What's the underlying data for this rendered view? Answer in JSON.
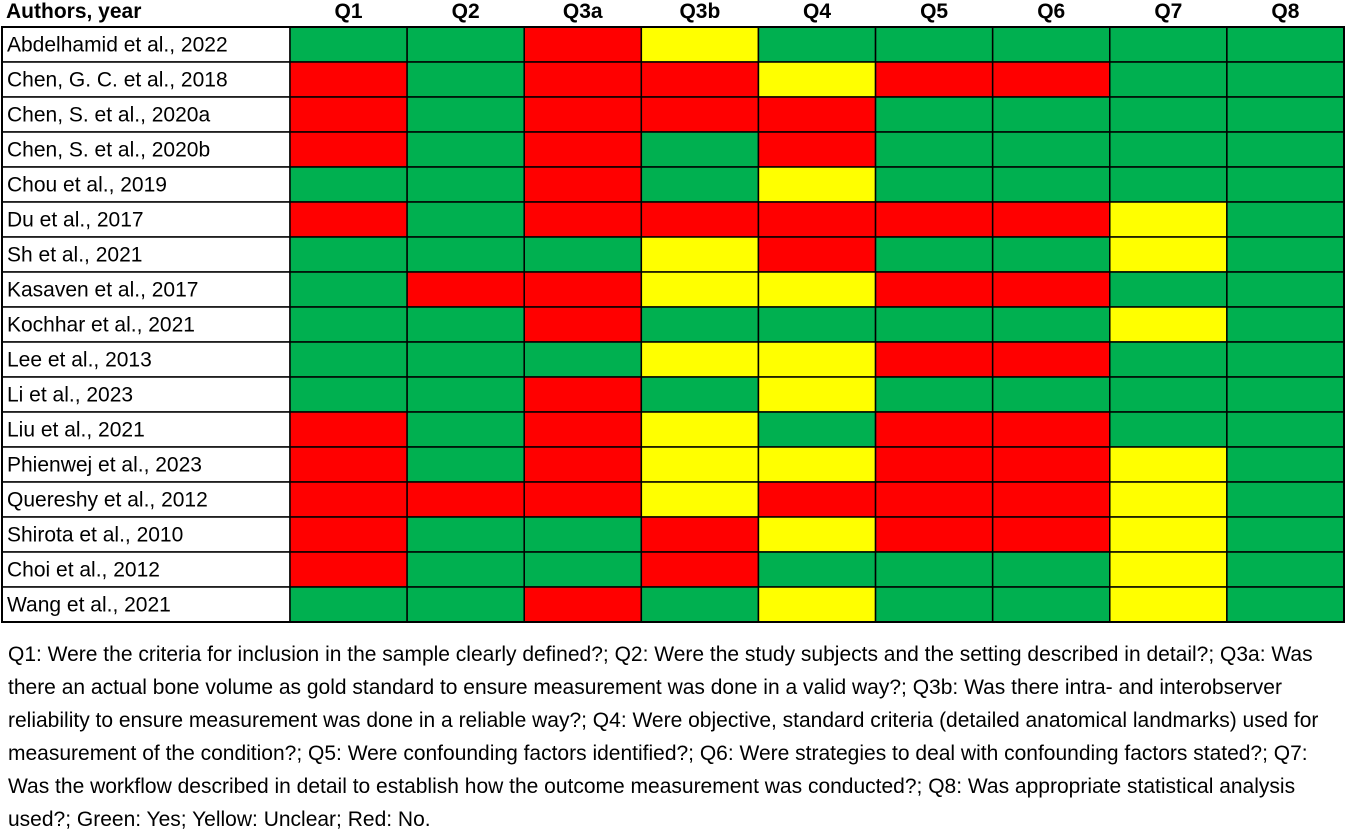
{
  "chart_data": {
    "type": "heatmap",
    "title": "",
    "corner_label": "Authors, year",
    "columns": [
      "Q1",
      "Q2",
      "Q3a",
      "Q3b",
      "Q4",
      "Q5",
      "Q6",
      "Q7",
      "Q8"
    ],
    "rows": [
      {
        "label": "Abdelhamid et al., 2022",
        "values": [
          "G",
          "G",
          "R",
          "Y",
          "G",
          "G",
          "G",
          "G",
          "G"
        ]
      },
      {
        "label": "Chen, G. C. et al., 2018",
        "values": [
          "R",
          "G",
          "R",
          "R",
          "Y",
          "R",
          "R",
          "G",
          "G"
        ]
      },
      {
        "label": "Chen, S. et al., 2020a",
        "values": [
          "R",
          "G",
          "R",
          "R",
          "R",
          "G",
          "G",
          "G",
          "G"
        ]
      },
      {
        "label": "Chen, S. et al., 2020b",
        "values": [
          "R",
          "G",
          "R",
          "G",
          "R",
          "G",
          "G",
          "G",
          "G"
        ]
      },
      {
        "label": "Chou et al., 2019",
        "values": [
          "G",
          "G",
          "R",
          "G",
          "Y",
          "G",
          "G",
          "G",
          "G"
        ]
      },
      {
        "label": "Du et al., 2017",
        "values": [
          "R",
          "G",
          "R",
          "R",
          "R",
          "R",
          "R",
          "Y",
          "G"
        ]
      },
      {
        "label": "Sh et al., 2021",
        "values": [
          "G",
          "G",
          "G",
          "Y",
          "R",
          "G",
          "G",
          "Y",
          "G"
        ]
      },
      {
        "label": "Kasaven et al., 2017",
        "values": [
          "G",
          "R",
          "R",
          "Y",
          "Y",
          "R",
          "R",
          "G",
          "G"
        ]
      },
      {
        "label": "Kochhar et al., 2021",
        "values": [
          "G",
          "G",
          "R",
          "G",
          "G",
          "G",
          "G",
          "Y",
          "G"
        ]
      },
      {
        "label": "Lee et al., 2013",
        "values": [
          "G",
          "G",
          "G",
          "Y",
          "Y",
          "R",
          "R",
          "G",
          "G"
        ]
      },
      {
        "label": "Li et al., 2023",
        "values": [
          "G",
          "G",
          "R",
          "G",
          "Y",
          "G",
          "G",
          "G",
          "G"
        ]
      },
      {
        "label": "Liu et al., 2021",
        "values": [
          "R",
          "G",
          "R",
          "Y",
          "G",
          "R",
          "R",
          "G",
          "G"
        ]
      },
      {
        "label": "Phienwej et al., 2023",
        "values": [
          "R",
          "G",
          "R",
          "Y",
          "Y",
          "R",
          "R",
          "Y",
          "G"
        ]
      },
      {
        "label": "Quereshy et al., 2012",
        "values": [
          "R",
          "R",
          "R",
          "Y",
          "R",
          "R",
          "R",
          "Y",
          "G"
        ]
      },
      {
        "label": "Shirota et al., 2010",
        "values": [
          "R",
          "G",
          "G",
          "R",
          "Y",
          "R",
          "R",
          "Y",
          "G"
        ]
      },
      {
        "label": "Choi et al., 2012",
        "values": [
          "R",
          "G",
          "G",
          "R",
          "G",
          "G",
          "G",
          "Y",
          "G"
        ]
      },
      {
        "label": "Wang et al., 2021",
        "values": [
          "G",
          "G",
          "R",
          "G",
          "Y",
          "G",
          "G",
          "Y",
          "G"
        ]
      }
    ],
    "value_colors": {
      "G": "#00b050",
      "Y": "#ffff00",
      "R": "#ff0000"
    },
    "grid": true,
    "legend": "caption-below"
  },
  "caption": "Q1: Were the criteria for inclusion in the sample clearly defined?; Q2: Were the study subjects and the setting described in detail?; Q3a: Was there an actual bone volume as gold standard to ensure measurement was done in a valid way?; Q3b: Was there intra- and interobserver reliability to ensure measurement was done in a reliable way?; Q4: Were objective, standard criteria (detailed anatomical landmarks) used for measurement of the condition?; Q5: Were confounding factors identified?; Q6: Were strategies to deal with confounding factors stated?; Q7: Was the workflow described in detail to establish how the outcome measurement was conducted?; Q8: Was appropriate statistical analysis used?; Green: Yes; Yellow: Unclear; Red: No."
}
